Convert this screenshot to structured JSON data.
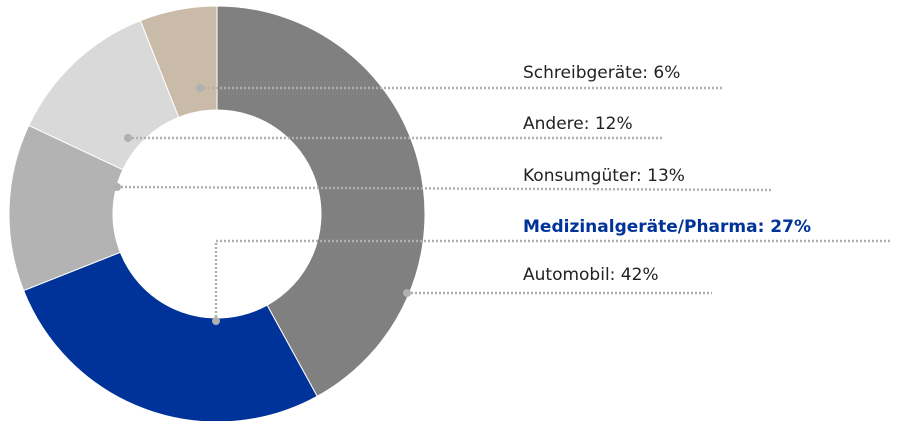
{
  "chart_data": {
    "type": "donut",
    "values": [
      42,
      27,
      13,
      12,
      6
    ],
    "value_labels": [
      "Automobil: 42%",
      "Medizinalgeräte/Pharma: 27%",
      "Konsumgüter: 13%",
      "Andere: 12%",
      "Schreibgeräte: 6%"
    ],
    "colors": [
      "#808080",
      "#003399",
      "#b3b3b3",
      "#d9d9d9",
      "#c9bba8"
    ],
    "highlighted": 1
  }
}
